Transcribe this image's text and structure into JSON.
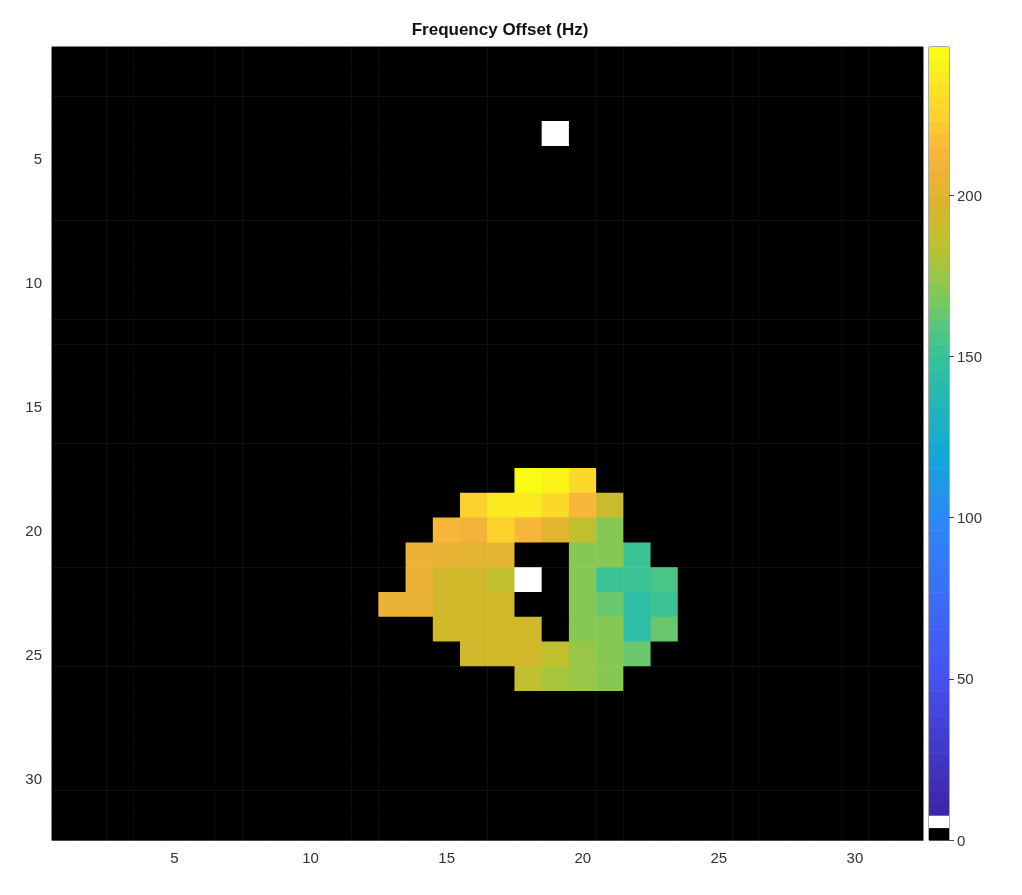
{
  "chart_data": {
    "type": "heatmap",
    "title": "Frequency Offset (Hz)",
    "categories": [
      null,
      null,
      null,
      null,
      "5",
      null,
      null,
      null,
      null,
      "10",
      null,
      null,
      null,
      null,
      "15",
      null,
      null,
      null,
      null,
      "20",
      null,
      null,
      null,
      null,
      "25",
      null,
      null,
      null,
      null,
      "30",
      null,
      null
    ],
    "y_categories": [
      null,
      null,
      null,
      null,
      "5",
      null,
      null,
      null,
      null,
      "10",
      null,
      null,
      null,
      null,
      "15",
      null,
      null,
      null,
      null,
      "20",
      null,
      null,
      null,
      null,
      "25",
      null,
      null,
      null,
      null,
      "30",
      null,
      null
    ],
    "cells": [
      [
        0,
        0,
        0,
        0,
        0,
        0,
        0,
        0,
        0,
        0,
        0,
        0,
        0,
        0,
        0,
        0,
        0,
        0,
        0,
        0,
        0,
        0,
        0,
        0,
        0,
        0,
        0,
        0,
        0,
        0,
        0,
        0
      ],
      [
        0,
        0,
        0,
        0,
        0,
        0,
        0,
        0,
        0,
        0,
        0,
        0,
        0,
        0,
        0,
        0,
        0,
        0,
        0,
        0,
        0,
        0,
        0,
        0,
        0,
        0,
        0,
        0,
        0,
        0,
        0,
        0
      ],
      [
        0,
        0,
        0,
        0,
        0,
        0,
        0,
        0,
        0,
        0,
        0,
        0,
        0,
        0,
        0,
        0,
        0,
        0,
        0,
        0,
        0,
        0,
        0,
        0,
        0,
        0,
        0,
        0,
        0,
        0,
        0,
        0
      ],
      [
        0,
        0,
        0,
        0,
        0,
        0,
        0,
        0,
        0,
        0,
        0,
        0,
        0,
        0,
        0,
        0,
        0,
        0,
        5,
        0,
        0,
        0,
        0,
        0,
        0,
        0,
        0,
        0,
        0,
        0,
        0,
        0
      ],
      [
        0,
        0,
        0,
        0,
        0,
        0,
        0,
        0,
        0,
        0,
        0,
        0,
        0,
        0,
        0,
        0,
        0,
        0,
        0,
        0,
        0,
        0,
        0,
        0,
        0,
        0,
        0,
        0,
        0,
        0,
        0,
        0
      ],
      [
        0,
        0,
        0,
        0,
        0,
        0,
        0,
        0,
        0,
        0,
        0,
        0,
        0,
        0,
        0,
        0,
        0,
        0,
        0,
        0,
        0,
        0,
        0,
        0,
        0,
        0,
        0,
        0,
        0,
        0,
        0,
        0
      ],
      [
        0,
        0,
        0,
        0,
        0,
        0,
        0,
        0,
        0,
        0,
        0,
        0,
        0,
        0,
        0,
        0,
        0,
        0,
        0,
        0,
        0,
        0,
        0,
        0,
        0,
        0,
        0,
        0,
        0,
        0,
        0,
        0
      ],
      [
        0,
        0,
        0,
        0,
        0,
        0,
        0,
        0,
        0,
        0,
        0,
        0,
        0,
        0,
        0,
        0,
        0,
        0,
        0,
        0,
        0,
        0,
        0,
        0,
        0,
        0,
        0,
        0,
        0,
        0,
        0,
        0
      ],
      [
        0,
        0,
        0,
        0,
        0,
        0,
        0,
        0,
        0,
        0,
        0,
        0,
        0,
        0,
        0,
        0,
        0,
        0,
        0,
        0,
        0,
        0,
        0,
        0,
        0,
        0,
        0,
        0,
        0,
        0,
        0,
        0
      ],
      [
        0,
        0,
        0,
        0,
        0,
        0,
        0,
        0,
        0,
        0,
        0,
        0,
        0,
        0,
        0,
        0,
        0,
        0,
        0,
        0,
        0,
        0,
        0,
        0,
        0,
        0,
        0,
        0,
        0,
        0,
        0,
        0
      ],
      [
        0,
        0,
        0,
        0,
        0,
        0,
        0,
        0,
        0,
        0,
        0,
        0,
        0,
        0,
        0,
        0,
        0,
        0,
        0,
        0,
        0,
        0,
        0,
        0,
        0,
        0,
        0,
        0,
        0,
        0,
        0,
        0
      ],
      [
        0,
        0,
        0,
        0,
        0,
        0,
        0,
        0,
        0,
        0,
        0,
        0,
        0,
        0,
        0,
        0,
        0,
        0,
        0,
        0,
        0,
        0,
        0,
        0,
        0,
        0,
        0,
        0,
        0,
        0,
        0,
        0
      ],
      [
        0,
        0,
        0,
        0,
        0,
        0,
        0,
        0,
        0,
        0,
        0,
        0,
        0,
        0,
        0,
        0,
        0,
        0,
        0,
        0,
        0,
        0,
        0,
        0,
        0,
        0,
        0,
        0,
        0,
        0,
        0,
        0
      ],
      [
        0,
        0,
        0,
        0,
        0,
        0,
        0,
        0,
        0,
        0,
        0,
        0,
        0,
        0,
        0,
        0,
        0,
        0,
        0,
        0,
        0,
        0,
        0,
        0,
        0,
        0,
        0,
        0,
        0,
        0,
        0,
        0
      ],
      [
        0,
        0,
        0,
        0,
        0,
        0,
        0,
        0,
        0,
        0,
        0,
        0,
        0,
        0,
        0,
        0,
        0,
        0,
        0,
        0,
        0,
        0,
        0,
        0,
        0,
        0,
        0,
        0,
        0,
        0,
        0,
        0
      ],
      [
        0,
        0,
        0,
        0,
        0,
        0,
        0,
        0,
        0,
        0,
        0,
        0,
        0,
        0,
        0,
        0,
        0,
        0,
        0,
        0,
        0,
        0,
        0,
        0,
        0,
        0,
        0,
        0,
        0,
        0,
        0,
        0
      ],
      [
        0,
        0,
        0,
        0,
        0,
        0,
        0,
        0,
        0,
        0,
        0,
        0,
        0,
        0,
        0,
        0,
        0,
        0,
        0,
        0,
        0,
        0,
        0,
        0,
        0,
        0,
        0,
        0,
        0,
        0,
        0,
        0
      ],
      [
        0,
        0,
        0,
        0,
        0,
        0,
        0,
        0,
        0,
        0,
        0,
        0,
        0,
        0,
        0,
        0,
        0,
        245,
        240,
        230,
        0,
        0,
        0,
        0,
        0,
        0,
        0,
        0,
        0,
        0,
        0,
        0
      ],
      [
        0,
        0,
        0,
        0,
        0,
        0,
        0,
        0,
        0,
        0,
        0,
        0,
        0,
        0,
        0,
        225,
        235,
        235,
        230,
        215,
        190,
        0,
        0,
        0,
        0,
        0,
        0,
        0,
        0,
        0,
        0,
        0
      ],
      [
        0,
        0,
        0,
        0,
        0,
        0,
        0,
        0,
        0,
        0,
        0,
        0,
        0,
        0,
        215,
        210,
        225,
        215,
        200,
        185,
        170,
        0,
        0,
        0,
        0,
        0,
        0,
        0,
        0,
        0,
        0,
        0
      ],
      [
        0,
        0,
        0,
        0,
        0,
        0,
        0,
        0,
        0,
        0,
        0,
        0,
        0,
        205,
        205,
        200,
        200,
        0,
        0,
        170,
        170,
        150,
        0,
        0,
        0,
        0,
        0,
        0,
        0,
        0,
        0,
        0
      ],
      [
        0,
        0,
        0,
        0,
        0,
        0,
        0,
        0,
        0,
        0,
        0,
        0,
        0,
        205,
        195,
        195,
        185,
        5,
        0,
        170,
        150,
        150,
        155,
        0,
        0,
        0,
        0,
        0,
        0,
        0,
        0,
        0
      ],
      [
        0,
        0,
        0,
        0,
        0,
        0,
        0,
        0,
        0,
        0,
        0,
        0,
        205,
        205,
        195,
        195,
        195,
        0,
        0,
        170,
        165,
        145,
        150,
        0,
        0,
        0,
        0,
        0,
        0,
        0,
        0,
        0
      ],
      [
        0,
        0,
        0,
        0,
        0,
        0,
        0,
        0,
        0,
        0,
        0,
        0,
        0,
        0,
        195,
        195,
        195,
        195,
        0,
        170,
        170,
        145,
        165,
        0,
        0,
        0,
        0,
        0,
        0,
        0,
        0,
        0
      ],
      [
        0,
        0,
        0,
        0,
        0,
        0,
        0,
        0,
        0,
        0,
        0,
        0,
        0,
        0,
        0,
        195,
        195,
        195,
        185,
        175,
        170,
        165,
        0,
        0,
        0,
        0,
        0,
        0,
        0,
        0,
        0,
        0
      ],
      [
        0,
        0,
        0,
        0,
        0,
        0,
        0,
        0,
        0,
        0,
        0,
        0,
        0,
        0,
        0,
        0,
        0,
        185,
        180,
        175,
        170,
        0,
        0,
        0,
        0,
        0,
        0,
        0,
        0,
        0,
        0,
        0
      ],
      [
        0,
        0,
        0,
        0,
        0,
        0,
        0,
        0,
        0,
        0,
        0,
        0,
        0,
        0,
        0,
        0,
        0,
        0,
        0,
        0,
        0,
        0,
        0,
        0,
        0,
        0,
        0,
        0,
        0,
        0,
        0,
        0
      ],
      [
        0,
        0,
        0,
        0,
        0,
        0,
        0,
        0,
        0,
        0,
        0,
        0,
        0,
        0,
        0,
        0,
        0,
        0,
        0,
        0,
        0,
        0,
        0,
        0,
        0,
        0,
        0,
        0,
        0,
        0,
        0,
        0
      ],
      [
        0,
        0,
        0,
        0,
        0,
        0,
        0,
        0,
        0,
        0,
        0,
        0,
        0,
        0,
        0,
        0,
        0,
        0,
        0,
        0,
        0,
        0,
        0,
        0,
        0,
        0,
        0,
        0,
        0,
        0,
        0,
        0
      ],
      [
        0,
        0,
        0,
        0,
        0,
        0,
        0,
        0,
        0,
        0,
        0,
        0,
        0,
        0,
        0,
        0,
        0,
        0,
        0,
        0,
        0,
        0,
        0,
        0,
        0,
        0,
        0,
        0,
        0,
        0,
        0,
        0
      ],
      [
        0,
        0,
        0,
        0,
        0,
        0,
        0,
        0,
        0,
        0,
        0,
        0,
        0,
        0,
        0,
        0,
        0,
        0,
        0,
        0,
        0,
        0,
        0,
        0,
        0,
        0,
        0,
        0,
        0,
        0,
        0,
        0
      ],
      [
        0,
        0,
        0,
        0,
        0,
        0,
        0,
        0,
        0,
        0,
        0,
        0,
        0,
        0,
        0,
        0,
        0,
        0,
        0,
        0,
        0,
        0,
        0,
        0,
        0,
        0,
        0,
        0,
        0,
        0,
        0,
        0
      ]
    ],
    "clim": [
      0,
      246
    ],
    "cticks": [
      0,
      50,
      100,
      150,
      200
    ]
  }
}
